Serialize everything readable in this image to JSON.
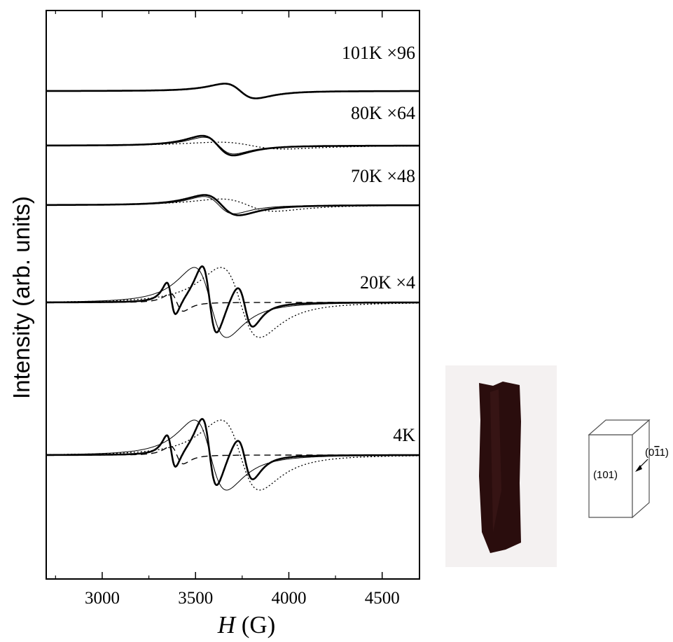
{
  "chart_data": {
    "type": "line",
    "title": "",
    "xlabel_italic": "H",
    "xlabel_unit": " (G)",
    "ylabel": "Intensity (arb. units)",
    "xlim": [
      2700,
      4700
    ],
    "xticks": [
      3000,
      3500,
      4000,
      4500
    ],
    "x_tick_labels": [
      "3000",
      "3500",
      "4000",
      "4500"
    ],
    "y_tick_labels_shown": false,
    "grid": false,
    "spectra": [
      {
        "label": "101K ×96",
        "components": [
          {
            "style": "thick",
            "type": "lorentzian_derivative",
            "center": 3740,
            "width": 145,
            "amplitude": 1.0
          }
        ]
      },
      {
        "label": "80K ×64",
        "components": [
          {
            "style": "thick",
            "type": "lorentzian_derivative",
            "center": 3620,
            "width": 145,
            "amplitude": 1.0
          },
          {
            "style": "thin",
            "type": "lorentzian_derivative",
            "center": 3625,
            "width": 140,
            "amplitude": 0.85
          },
          {
            "style": "dotted",
            "type": "lorentzian_derivative",
            "center": 3800,
            "width": 300,
            "amplitude": 0.35
          }
        ]
      },
      {
        "label": "70K ×48",
        "components": [
          {
            "style": "thick",
            "type": "lorentzian_derivative",
            "center": 3640,
            "width": 160,
            "amplitude": 1.0
          },
          {
            "style": "thin",
            "type": "lorentzian_derivative",
            "center": 3625,
            "width": 140,
            "amplitude": 0.85
          },
          {
            "style": "dotted",
            "type": "lorentzian_derivative",
            "center": 3780,
            "width": 250,
            "amplitude": 0.6
          }
        ]
      },
      {
        "label": "20K ×4",
        "components": [
          {
            "style": "thick",
            "type": "composite",
            "note": "sum of three derivative lines at ~3370, 3590, 3750 G"
          },
          {
            "style": "thin",
            "type": "lorentzian_derivative",
            "center": 3580,
            "width": 150,
            "amplitude": 1.0
          },
          {
            "style": "dotted",
            "type": "lorentzian_derivative",
            "center": 3740,
            "width": 180,
            "amplitude": 1.0
          },
          {
            "style": "dashed",
            "type": "lorentzian_derivative",
            "center": 3400,
            "width": 60,
            "amplitude": 0.25
          }
        ]
      },
      {
        "label": "4K",
        "components": [
          {
            "style": "thick",
            "type": "composite",
            "note": "sum of three derivative lines at ~3370, 3590, 3750 G"
          },
          {
            "style": "thin",
            "type": "lorentzian_derivative",
            "center": 3580,
            "width": 150,
            "amplitude": 1.0
          },
          {
            "style": "dotted",
            "type": "lorentzian_derivative",
            "center": 3740,
            "width": 180,
            "amplitude": 1.0
          },
          {
            "style": "dashed",
            "type": "lorentzian_derivative",
            "center": 3400,
            "width": 60,
            "amplitude": 0.25
          }
        ]
      }
    ]
  },
  "inset": {
    "photo_color": "#2a0d0d",
    "face_front_label": "(101)",
    "face_side_label": "(0",
    "face_side_bar_digit": "1",
    "face_side_end": "1)"
  }
}
